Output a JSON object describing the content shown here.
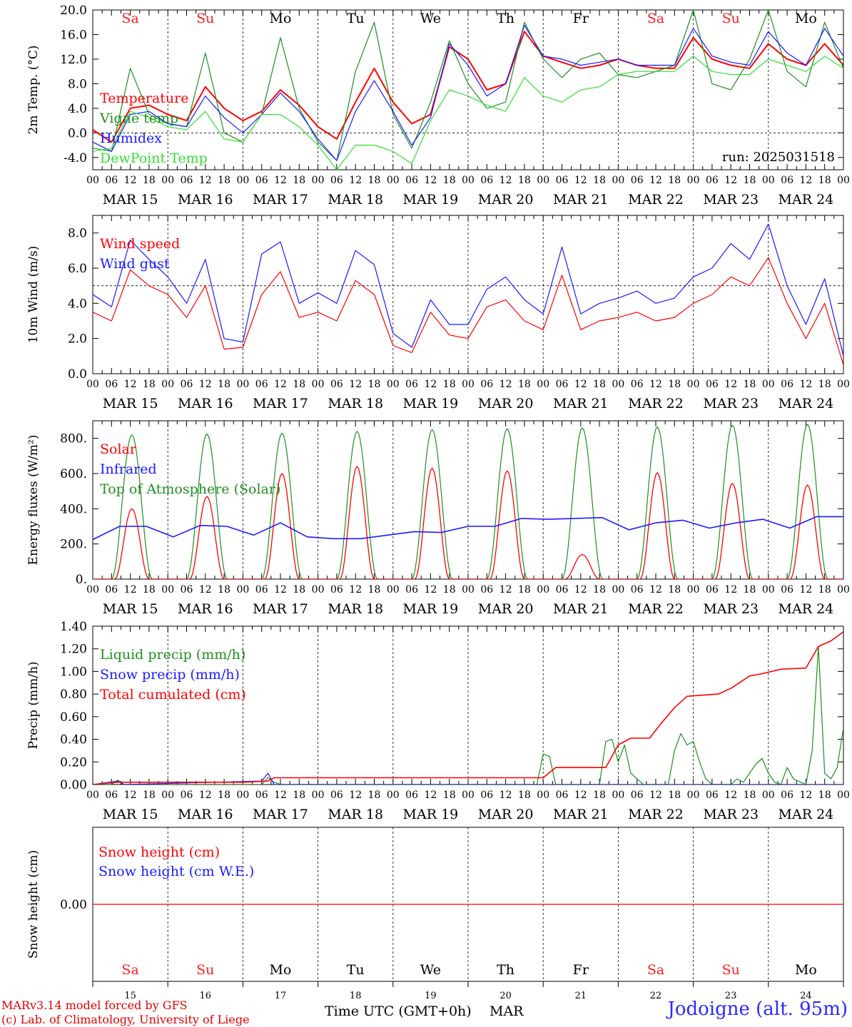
{
  "run_label": "run: 2025031518",
  "time_axis_title": "Time UTC (GMT+0h)",
  "month_label": "MAR",
  "station_label": "Jodoigne (alt. 95m)",
  "credits": [
    "MARv3.14 model forced by GFS",
    "(c) Lab. of Climatology, University of Liege"
  ],
  "colors": {
    "red": "#ff0000",
    "green": "#1f8f1f",
    "blue": "#1a1aff",
    "lightgreen": "#33dd33",
    "weekend": "#ff2020",
    "weekday": "#000000"
  },
  "days": [
    {
      "abbr": "Sa",
      "date": "MAR 15",
      "num": "15",
      "weekend": true
    },
    {
      "abbr": "Su",
      "date": "MAR 16",
      "num": "16",
      "weekend": true
    },
    {
      "abbr": "Mo",
      "date": "MAR 17",
      "num": "17",
      "weekend": false
    },
    {
      "abbr": "Tu",
      "date": "MAR 18",
      "num": "18",
      "weekend": false
    },
    {
      "abbr": "We",
      "date": "MAR 19",
      "num": "19",
      "weekend": false
    },
    {
      "abbr": "Th",
      "date": "MAR 20",
      "num": "20",
      "weekend": false
    },
    {
      "abbr": "Fr",
      "date": "MAR 21",
      "num": "21",
      "weekend": false
    },
    {
      "abbr": "Sa",
      "date": "MAR 22",
      "num": "22",
      "weekend": true
    },
    {
      "abbr": "Su",
      "date": "MAR 23",
      "num": "23",
      "weekend": true
    },
    {
      "abbr": "Mo",
      "date": "MAR 24",
      "num": "24",
      "weekend": false
    }
  ],
  "hour_ticks": [
    "00",
    "06",
    "12",
    "18"
  ],
  "chart_data": [
    {
      "type": "line",
      "ylabel": "2m Temp. (°C)",
      "ylim": [
        -6,
        20
      ],
      "yticks": [
        -4,
        0,
        4,
        8,
        12,
        16,
        20
      ],
      "ytick_labels": [
        "-4.0",
        "0.0",
        "4.0",
        "8.0",
        "12.0",
        "16.0",
        "20.0"
      ],
      "ref_line": 0,
      "x_hours": [
        0,
        6,
        12,
        18,
        24,
        30,
        36,
        42,
        48,
        54,
        60,
        66,
        72,
        78,
        84,
        90,
        96,
        102,
        108,
        114,
        120,
        126,
        132,
        138,
        144,
        150,
        156,
        162,
        168,
        174,
        180,
        186,
        192,
        198,
        204,
        210,
        216,
        222,
        228,
        234,
        240
      ],
      "series": [
        {
          "name": "Temperature",
          "color": "#ff0000",
          "values": [
            0.5,
            -1.5,
            4.0,
            4.5,
            3.0,
            2.0,
            7.5,
            4.0,
            2.0,
            3.5,
            7.0,
            4.5,
            1.0,
            -1.0,
            5.0,
            10.5,
            5.0,
            1.5,
            3.0,
            14.0,
            12.0,
            7.0,
            8.0,
            16.5,
            12.5,
            11.5,
            10.5,
            11.0,
            12.0,
            11.0,
            10.5,
            10.5,
            15.5,
            12.0,
            11.0,
            10.5,
            14.5,
            12.0,
            11.0,
            14.5,
            11.0
          ]
        },
        {
          "name": "Vigne temp",
          "color": "#1f8f1f",
          "values": [
            -2.5,
            -3.0,
            10.5,
            3.0,
            1.5,
            1.0,
            13.0,
            0.0,
            -1.5,
            3.0,
            15.5,
            4.0,
            -1.5,
            -4.5,
            10.0,
            18.0,
            3.0,
            -2.5,
            5.0,
            15.0,
            8.0,
            4.0,
            5.0,
            18.0,
            12.0,
            9.0,
            12.0,
            13.0,
            9.5,
            9.0,
            10.0,
            11.0,
            20.0,
            8.0,
            7.0,
            12.0,
            20.0,
            10.0,
            7.5,
            18.0,
            10.5
          ]
        },
        {
          "name": "Humidex",
          "color": "#1a1aff",
          "values": [
            -1.5,
            -3.0,
            3.0,
            3.5,
            1.5,
            1.0,
            6.0,
            2.5,
            0.0,
            3.0,
            6.5,
            3.5,
            -1.0,
            -4.5,
            3.5,
            8.5,
            3.5,
            -2.0,
            2.5,
            14.5,
            11.0,
            6.0,
            8.0,
            17.5,
            12.5,
            12.0,
            11.0,
            11.5,
            12.0,
            11.0,
            11.0,
            11.0,
            17.0,
            12.5,
            11.5,
            11.0,
            16.5,
            13.0,
            11.0,
            17.0,
            12.5
          ]
        },
        {
          "name": "DewPoint Temp",
          "color": "#33dd33",
          "values": [
            -3.0,
            -2.5,
            3.5,
            2.5,
            1.0,
            0.5,
            3.5,
            -1.0,
            -1.5,
            3.0,
            3.0,
            1.0,
            -2.0,
            -6.0,
            -2.0,
            -2.0,
            -3.0,
            -5.0,
            2.0,
            7.0,
            6.0,
            4.5,
            3.5,
            9.0,
            6.0,
            5.0,
            7.0,
            7.5,
            9.5,
            10.0,
            10.0,
            10.0,
            12.5,
            10.0,
            9.5,
            9.5,
            12.0,
            11.0,
            10.0,
            12.5,
            10.5
          ]
        }
      ]
    },
    {
      "type": "line",
      "ylabel": "10m Wind (m/s)",
      "ylim": [
        0,
        9
      ],
      "yticks": [
        0,
        2,
        4,
        6,
        8
      ],
      "ytick_labels": [
        "0.0",
        "2.0",
        "4.0",
        "6.0",
        "8.0"
      ],
      "ref_line": 5,
      "x_hours": [
        0,
        6,
        12,
        18,
        24,
        30,
        36,
        42,
        48,
        54,
        60,
        66,
        72,
        78,
        84,
        90,
        96,
        102,
        108,
        114,
        120,
        126,
        132,
        138,
        144,
        150,
        156,
        162,
        168,
        174,
        180,
        186,
        192,
        198,
        204,
        210,
        216,
        222,
        228,
        234,
        240
      ],
      "series": [
        {
          "name": "Wind speed",
          "color": "#ff0000",
          "values": [
            3.5,
            3.0,
            5.9,
            5.0,
            4.5,
            3.2,
            5.0,
            1.4,
            1.5,
            4.5,
            5.8,
            3.2,
            3.5,
            3.0,
            5.3,
            4.5,
            1.6,
            1.2,
            3.5,
            2.2,
            2.0,
            3.8,
            4.2,
            3.0,
            2.5,
            5.6,
            2.5,
            3.0,
            3.2,
            3.5,
            3.0,
            3.2,
            4.0,
            4.5,
            5.5,
            5.0,
            6.6,
            4.0,
            2.0,
            4.0,
            0.5
          ]
        },
        {
          "name": "Wind gust",
          "color": "#1a1aff",
          "values": [
            4.5,
            3.8,
            7.6,
            6.5,
            5.5,
            4.0,
            6.5,
            2.0,
            1.8,
            6.8,
            7.5,
            4.0,
            4.6,
            4.0,
            7.0,
            6.2,
            2.3,
            1.5,
            4.2,
            2.8,
            2.8,
            4.8,
            5.5,
            4.2,
            3.4,
            7.2,
            3.4,
            4.0,
            4.3,
            4.7,
            4.0,
            4.3,
            5.5,
            6.0,
            7.4,
            6.5,
            8.5,
            5.0,
            2.8,
            5.4,
            1.0
          ]
        }
      ]
    },
    {
      "type": "line",
      "ylabel": "Energy fluxes (W/m²)",
      "ylim": [
        0,
        900
      ],
      "yticks": [
        0,
        200,
        400,
        600,
        800
      ],
      "ytick_labels": [
        "0.",
        "200.",
        "400.",
        "600.",
        "800."
      ],
      "ref_line": null,
      "day_peak_toa": [
        820,
        825,
        830,
        840,
        850,
        855,
        860,
        865,
        875,
        880
      ],
      "day_peak_solar": [
        400,
        470,
        600,
        640,
        630,
        615,
        140,
        605,
        545,
        535
      ],
      "infrared_values": [
        225,
        300,
        300,
        240,
        305,
        300,
        250,
        320,
        240,
        230,
        230,
        250,
        270,
        265,
        300,
        300,
        345,
        340,
        345,
        350,
        280,
        320,
        335,
        290,
        320,
        340,
        290,
        355,
        355
      ],
      "series": [
        {
          "name": "Solar",
          "color": "#ff0000"
        },
        {
          "name": "Infrared",
          "color": "#1a1aff"
        },
        {
          "name": "Top of Atmosphere (Solar)",
          "color": "#1f8f1f"
        }
      ]
    },
    {
      "type": "line",
      "ylabel": "Precip (mm/h)",
      "ylim": [
        0,
        1.4
      ],
      "yticks": [
        0,
        0.2,
        0.4,
        0.6,
        0.8,
        1.0,
        1.2,
        1.4
      ],
      "ytick_labels": [
        "0.00",
        "0.20",
        "0.40",
        "0.60",
        "0.80",
        "1.00",
        "1.20",
        "1.40"
      ],
      "ref_line": null,
      "liquid_points": [
        [
          0,
          0
        ],
        [
          6,
          0.0
        ],
        [
          8,
          0.04
        ],
        [
          10,
          0.0
        ],
        [
          54,
          0.0
        ],
        [
          56,
          0.06
        ],
        [
          58,
          0.02
        ],
        [
          60,
          0
        ],
        [
          142,
          0
        ],
        [
          144,
          0.27
        ],
        [
          146,
          0.25
        ],
        [
          148,
          0
        ],
        [
          162,
          0
        ],
        [
          164,
          0.38
        ],
        [
          166,
          0.4
        ],
        [
          168,
          0.2
        ],
        [
          170,
          0.35
        ],
        [
          172,
          0.1
        ],
        [
          174,
          0.05
        ],
        [
          176,
          0
        ],
        [
          184,
          0
        ],
        [
          186,
          0.3
        ],
        [
          188,
          0.45
        ],
        [
          190,
          0.35
        ],
        [
          192,
          0.38
        ],
        [
          194,
          0.2
        ],
        [
          196,
          0.05
        ],
        [
          198,
          0
        ],
        [
          204,
          0
        ],
        [
          206,
          0.05
        ],
        [
          208,
          0.02
        ],
        [
          210,
          0.1
        ],
        [
          212,
          0.18
        ],
        [
          214,
          0.23
        ],
        [
          216,
          0.1
        ],
        [
          218,
          0.02
        ],
        [
          220,
          0.0
        ],
        [
          222,
          0.15
        ],
        [
          224,
          0.05
        ],
        [
          228,
          0.0
        ],
        [
          230,
          0.3
        ],
        [
          232,
          1.22
        ],
        [
          234,
          0.1
        ],
        [
          236,
          0.05
        ],
        [
          238,
          0.15
        ],
        [
          240,
          0.5
        ]
      ],
      "snow_points": [
        [
          0,
          0
        ],
        [
          8,
          0.03
        ],
        [
          10,
          0
        ],
        [
          54,
          0.03
        ],
        [
          56,
          0.1
        ],
        [
          58,
          0
        ],
        [
          240,
          0
        ]
      ],
      "cumulated_points": [
        [
          0,
          0
        ],
        [
          8,
          0.02
        ],
        [
          48,
          0.02
        ],
        [
          56,
          0.03
        ],
        [
          58,
          0.06
        ],
        [
          144,
          0.06
        ],
        [
          148,
          0.15
        ],
        [
          164,
          0.15
        ],
        [
          168,
          0.35
        ],
        [
          172,
          0.41
        ],
        [
          178,
          0.41
        ],
        [
          182,
          0.55
        ],
        [
          186,
          0.68
        ],
        [
          190,
          0.78
        ],
        [
          200,
          0.8
        ],
        [
          204,
          0.85
        ],
        [
          210,
          0.96
        ],
        [
          214,
          0.98
        ],
        [
          220,
          1.02
        ],
        [
          228,
          1.03
        ],
        [
          232,
          1.22
        ],
        [
          236,
          1.27
        ],
        [
          240,
          1.35
        ]
      ],
      "series": [
        {
          "name": "Liquid precip (mm/h)",
          "color": "#1f8f1f"
        },
        {
          "name": "Snow precip (mm/h)",
          "color": "#1a1aff"
        },
        {
          "name": "Total cumulated (cm)",
          "color": "#ff0000"
        }
      ]
    },
    {
      "type": "line",
      "ylabel": "Snow height (cm)",
      "ylim": [
        -1,
        1
      ],
      "yticks": [
        0
      ],
      "ytick_labels": [
        "0.00"
      ],
      "ref_line": null,
      "series": [
        {
          "name": "Snow height (cm)",
          "color": "#ff0000",
          "values": [
            0,
            0
          ]
        },
        {
          "name": "Snow height (cm W.E.)",
          "color": "#1a1aff",
          "values": [
            0,
            0
          ]
        }
      ]
    }
  ]
}
